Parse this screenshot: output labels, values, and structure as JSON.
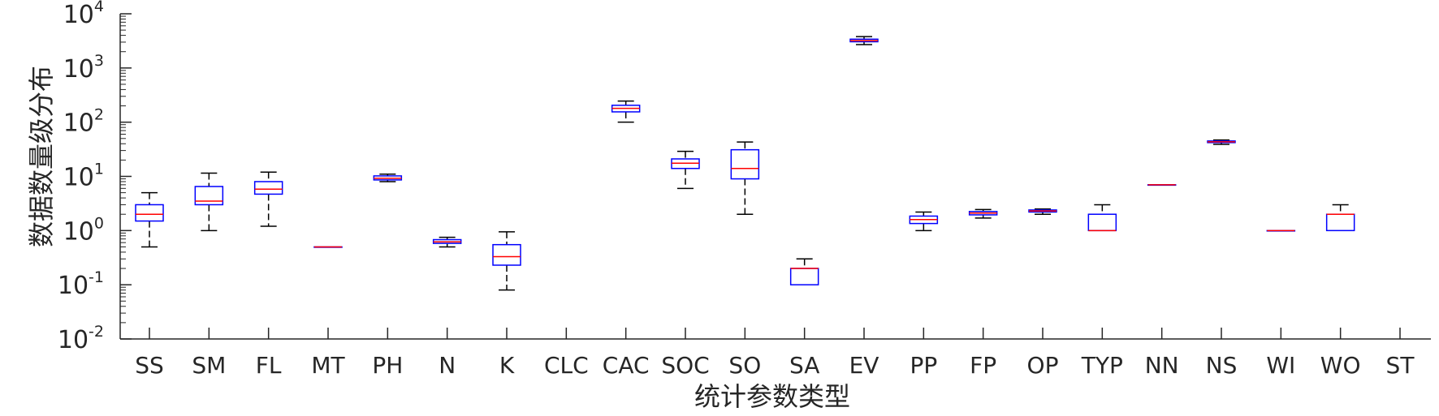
{
  "chart_data": {
    "type": "box",
    "title": "",
    "xlabel": "统计参数类型",
    "ylabel": "数据数量级分布",
    "yscale": "log",
    "ylim": [
      0.01,
      10000
    ],
    "y_ticks": [
      {
        "value": 0.01,
        "base": "10",
        "exp": "-2"
      },
      {
        "value": 0.1,
        "base": "10",
        "exp": "-1"
      },
      {
        "value": 1,
        "base": "10",
        "exp": "0"
      },
      {
        "value": 10,
        "base": "10",
        "exp": "1"
      },
      {
        "value": 100,
        "base": "10",
        "exp": "2"
      },
      {
        "value": 1000,
        "base": "10",
        "exp": "3"
      },
      {
        "value": 10000,
        "base": "10",
        "exp": "4"
      }
    ],
    "grid": false,
    "legend": "none",
    "colors": {
      "box": "#0000ff",
      "median": "#ff0000",
      "whisker": "#000000",
      "axis": "#262626"
    },
    "categories": [
      "SS",
      "SM",
      "FL",
      "MT",
      "PH",
      "N",
      "K",
      "CLC",
      "CAC",
      "SOC",
      "SO",
      "SA",
      "EV",
      "PP",
      "FP",
      "OP",
      "TYP",
      "NN",
      "NS",
      "WI",
      "WO",
      "ST"
    ],
    "boxes": [
      {
        "category": "SS",
        "whisker_low": 0.5,
        "q1": 1.5,
        "median": 2.0,
        "q3": 3.0,
        "whisker_high": 5.0
      },
      {
        "category": "SM",
        "whisker_low": 1.0,
        "q1": 3.0,
        "median": 3.5,
        "q3": 6.5,
        "whisker_high": 11.5
      },
      {
        "category": "FL",
        "whisker_low": 1.2,
        "q1": 4.7,
        "median": 5.8,
        "q3": 8.0,
        "whisker_high": 12.0
      },
      {
        "category": "MT",
        "whisker_low": 0.5,
        "q1": 0.5,
        "median": 0.5,
        "q3": 0.5,
        "whisker_high": 0.5
      },
      {
        "category": "PH",
        "whisker_low": 8.0,
        "q1": 8.6,
        "median": 9.2,
        "q3": 10.2,
        "whisker_high": 11.0
      },
      {
        "category": "N",
        "whisker_low": 0.5,
        "q1": 0.58,
        "median": 0.62,
        "q3": 0.68,
        "whisker_high": 0.75
      },
      {
        "category": "K",
        "whisker_low": 0.08,
        "q1": 0.23,
        "median": 0.33,
        "q3": 0.55,
        "whisker_high": 0.95
      },
      {
        "category": "CLC"
      },
      {
        "category": "CAC",
        "whisker_low": 100,
        "q1": 155,
        "median": 180,
        "q3": 205,
        "whisker_high": 245
      },
      {
        "category": "SOC",
        "whisker_low": 6.0,
        "q1": 14,
        "median": 17.5,
        "q3": 21,
        "whisker_high": 29
      },
      {
        "category": "SO",
        "whisker_low": 2.0,
        "q1": 9.0,
        "median": 14,
        "q3": 31,
        "whisker_high": 43
      },
      {
        "category": "SA",
        "whisker_low": 0.1,
        "q1": 0.1,
        "median": 0.2,
        "q3": 0.2,
        "whisker_high": 0.3
      },
      {
        "category": "EV",
        "whisker_low": 2700,
        "q1": 3050,
        "median": 3200,
        "q3": 3400,
        "whisker_high": 3800
      },
      {
        "category": "PP",
        "whisker_low": 1.0,
        "q1": 1.35,
        "median": 1.6,
        "q3": 1.85,
        "whisker_high": 2.2
      },
      {
        "category": "FP",
        "whisker_low": 1.7,
        "q1": 1.95,
        "median": 2.1,
        "q3": 2.25,
        "whisker_high": 2.45
      },
      {
        "category": "OP",
        "whisker_low": 2.0,
        "q1": 2.2,
        "median": 2.3,
        "q3": 2.4,
        "whisker_high": 2.5
      },
      {
        "category": "TYP",
        "whisker_low": 1.0,
        "q1": 1.0,
        "median": 1.0,
        "q3": 2.0,
        "whisker_high": 3.0
      },
      {
        "category": "NN",
        "whisker_low": 7.0,
        "q1": 7.0,
        "median": 7.0,
        "q3": 7.0,
        "whisker_high": 7.0
      },
      {
        "category": "NS",
        "whisker_low": 39,
        "q1": 42,
        "median": 43.5,
        "q3": 45,
        "whisker_high": 47
      },
      {
        "category": "WI",
        "whisker_low": 1.0,
        "q1": 1.0,
        "median": 1.0,
        "q3": 1.0,
        "whisker_high": 1.0
      },
      {
        "category": "WO",
        "whisker_low": 1.0,
        "q1": 1.0,
        "median": 2.0,
        "q3": 2.0,
        "whisker_high": 3.0
      },
      {
        "category": "ST"
      }
    ]
  }
}
